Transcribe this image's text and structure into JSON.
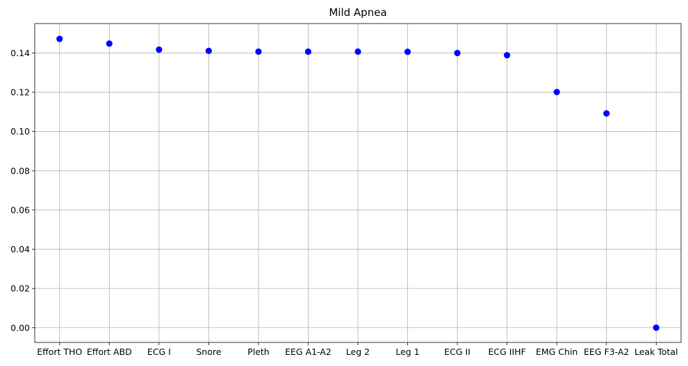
{
  "chart_data": {
    "type": "scatter",
    "title": "Mild Apnea",
    "xlabel": "",
    "ylabel": "",
    "categories": [
      "Effort THO",
      "Effort ABD",
      "ECG I",
      "Snore",
      "Pleth",
      "EEG A1-A2",
      "Leg 2",
      "Leg 1",
      "ECG II",
      "ECG IIHF",
      "EMG Chin",
      "EEG F3-A2",
      "Leak Total"
    ],
    "values": [
      0.1472,
      0.1448,
      0.1417,
      0.1411,
      0.1407,
      0.1407,
      0.1407,
      0.1406,
      0.14,
      0.1389,
      0.1201,
      0.1092,
      0.0
    ],
    "ylim": [
      -0.0075,
      0.155
    ],
    "yticks": [
      0.0,
      0.02,
      0.04,
      0.06,
      0.08,
      0.1,
      0.12,
      0.14
    ],
    "ytick_labels": [
      "0.00",
      "0.02",
      "0.04",
      "0.06",
      "0.08",
      "0.10",
      "0.12",
      "0.14"
    ],
    "grid": true,
    "marker_color": "#0000ff"
  }
}
